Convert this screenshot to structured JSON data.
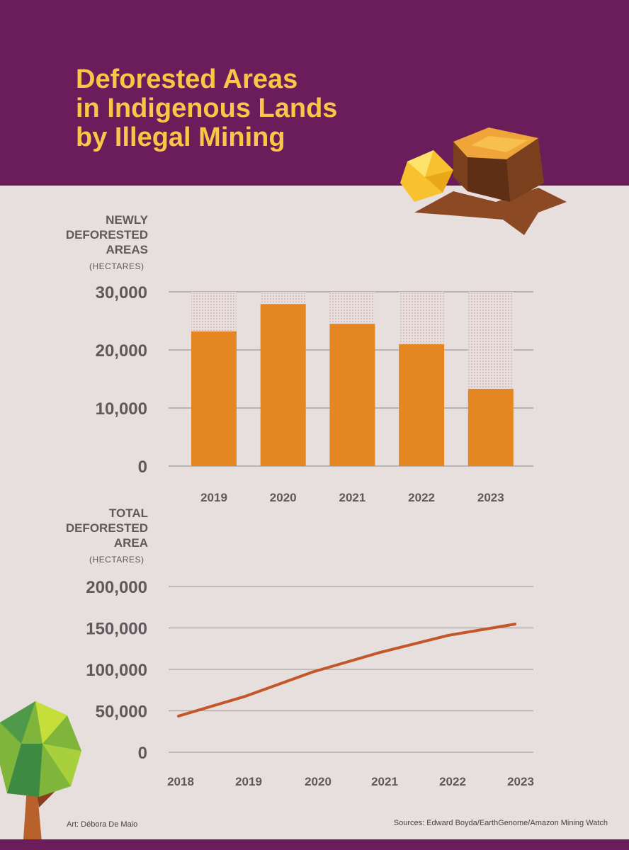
{
  "title": "Deforested Areas\nin Indigenous Lands\nby Illegal Mining",
  "colors": {
    "header": "#6a1d5a",
    "title": "#fbc547",
    "bar": "#e48723",
    "line": "#c4572a",
    "background": "#e7dede"
  },
  "chart_data": [
    {
      "type": "bar",
      "ylabel": "NEWLY\nDEFORESTED\nAREAS",
      "unit": "(HECTARES)",
      "categories": [
        "2019",
        "2020",
        "2021",
        "2022",
        "2023"
      ],
      "values": [
        23200,
        27900,
        24500,
        21000,
        13300
      ],
      "ylim": [
        0,
        30000
      ],
      "yticks": [
        0,
        10000,
        20000,
        30000
      ],
      "ytick_labels": [
        "0",
        "10,000",
        "20,000",
        "30,000"
      ],
      "grid": true
    },
    {
      "type": "line",
      "ylabel": "TOTAL\nDEFORESTED\nAREA",
      "unit": "(HECTARES)",
      "x": [
        "2018",
        "2019",
        "2020",
        "2021",
        "2022",
        "2023"
      ],
      "values": [
        43700,
        67700,
        97000,
        120600,
        140900,
        154600
      ],
      "ylim": [
        0,
        200000
      ],
      "yticks": [
        0,
        50000,
        100000,
        150000,
        200000
      ],
      "ytick_labels": [
        "0",
        "50,000",
        "100,000",
        "150,000",
        "200,000"
      ],
      "grid": true
    }
  ],
  "credits": {
    "art": "Art: Débora De Maio",
    "sources": "Sources: Edward Boyda/EarthGenome/Amazon Mining Watch"
  }
}
